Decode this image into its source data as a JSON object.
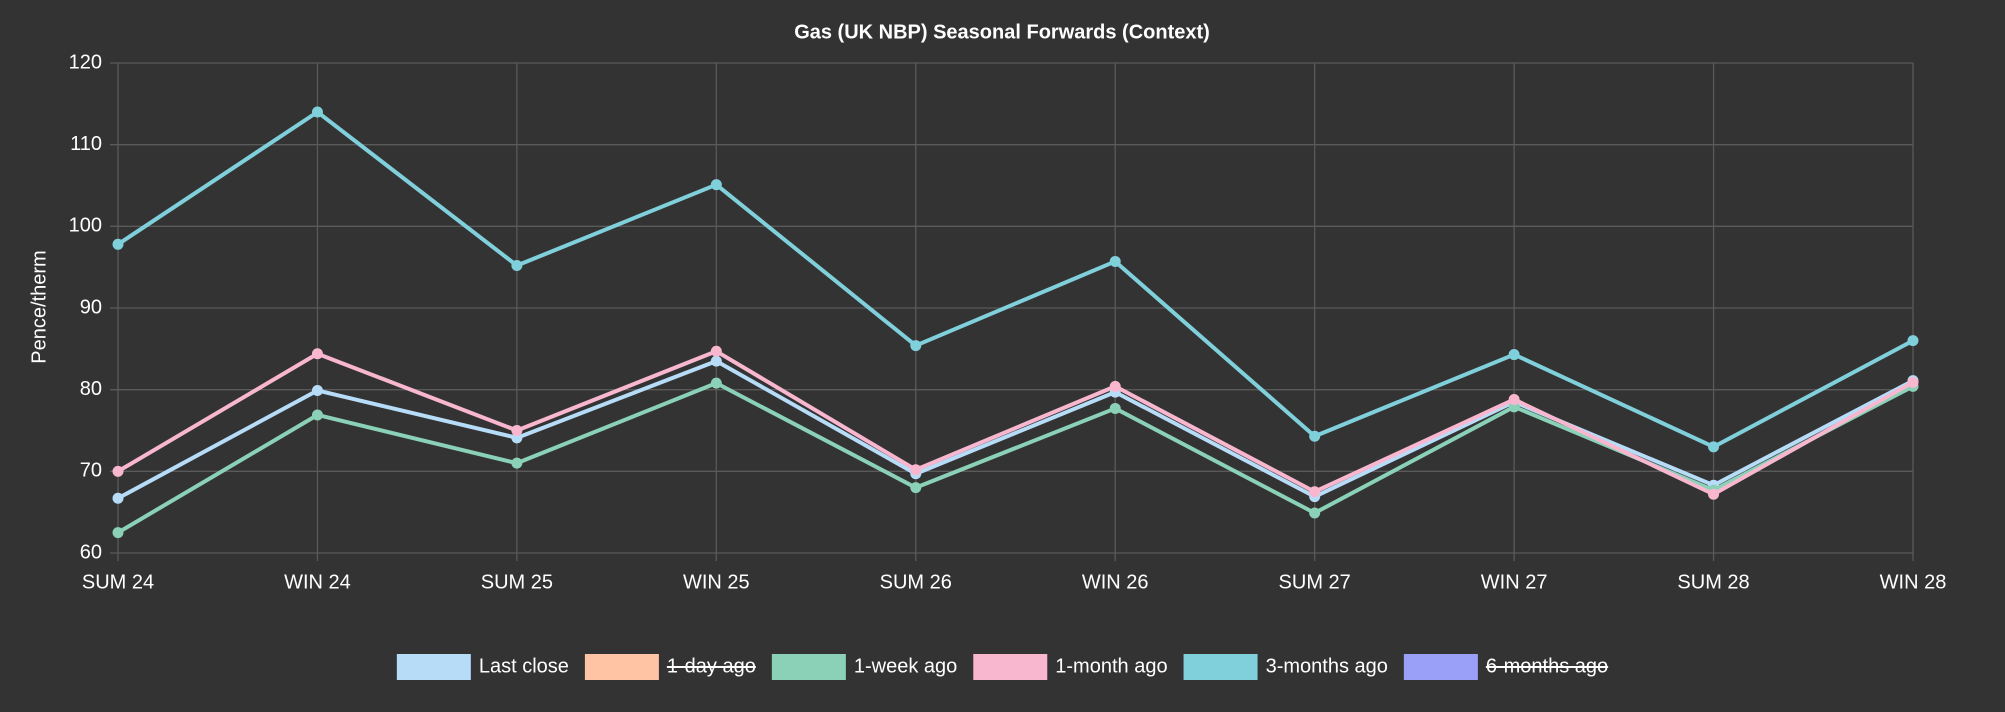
{
  "chart_data": {
    "type": "line",
    "title": "Gas (UK NBP) Seasonal Forwards (Context)",
    "y_label": "Pence/therm",
    "categories": [
      "SUM 24",
      "WIN 24",
      "SUM 25",
      "WIN 25",
      "SUM 26",
      "WIN 26",
      "SUM 27",
      "WIN 27",
      "SUM 28",
      "WIN 28"
    ],
    "ylim": [
      60,
      120
    ],
    "yticks": [
      60,
      70,
      80,
      90,
      100,
      110,
      120
    ],
    "grid": true,
    "legend": "bottom",
    "series": [
      {
        "name": "Last close",
        "color": "#b6dcf8",
        "hidden": false,
        "values": [
          66.7,
          79.9,
          74.1,
          83.5,
          69.7,
          79.7,
          66.9,
          78.5,
          68.3,
          81.1
        ]
      },
      {
        "name": "1-day ago",
        "color": "#fec4a4",
        "hidden": true,
        "values": [
          null,
          null,
          null,
          null,
          null,
          null,
          null,
          null,
          null,
          null
        ]
      },
      {
        "name": "1-week ago",
        "color": "#8ad1b8",
        "hidden": false,
        "values": [
          62.5,
          76.9,
          71.0,
          80.8,
          68.0,
          77.7,
          64.9,
          77.9,
          67.7,
          80.4
        ]
      },
      {
        "name": "1-month ago",
        "color": "#f8b7cf",
        "hidden": false,
        "values": [
          70.0,
          84.4,
          75.0,
          84.7,
          70.2,
          80.4,
          67.5,
          78.8,
          67.2,
          80.9
        ]
      },
      {
        "name": "3-months ago",
        "color": "#80d0dc",
        "hidden": false,
        "values": [
          97.8,
          114.0,
          95.2,
          105.1,
          85.4,
          95.7,
          74.3,
          84.3,
          73.0,
          86.0
        ]
      },
      {
        "name": "6-months ago",
        "color": "#9aa0f8",
        "hidden": true,
        "values": [
          null,
          null,
          null,
          null,
          null,
          null,
          null,
          null,
          null,
          null
        ]
      }
    ]
  }
}
